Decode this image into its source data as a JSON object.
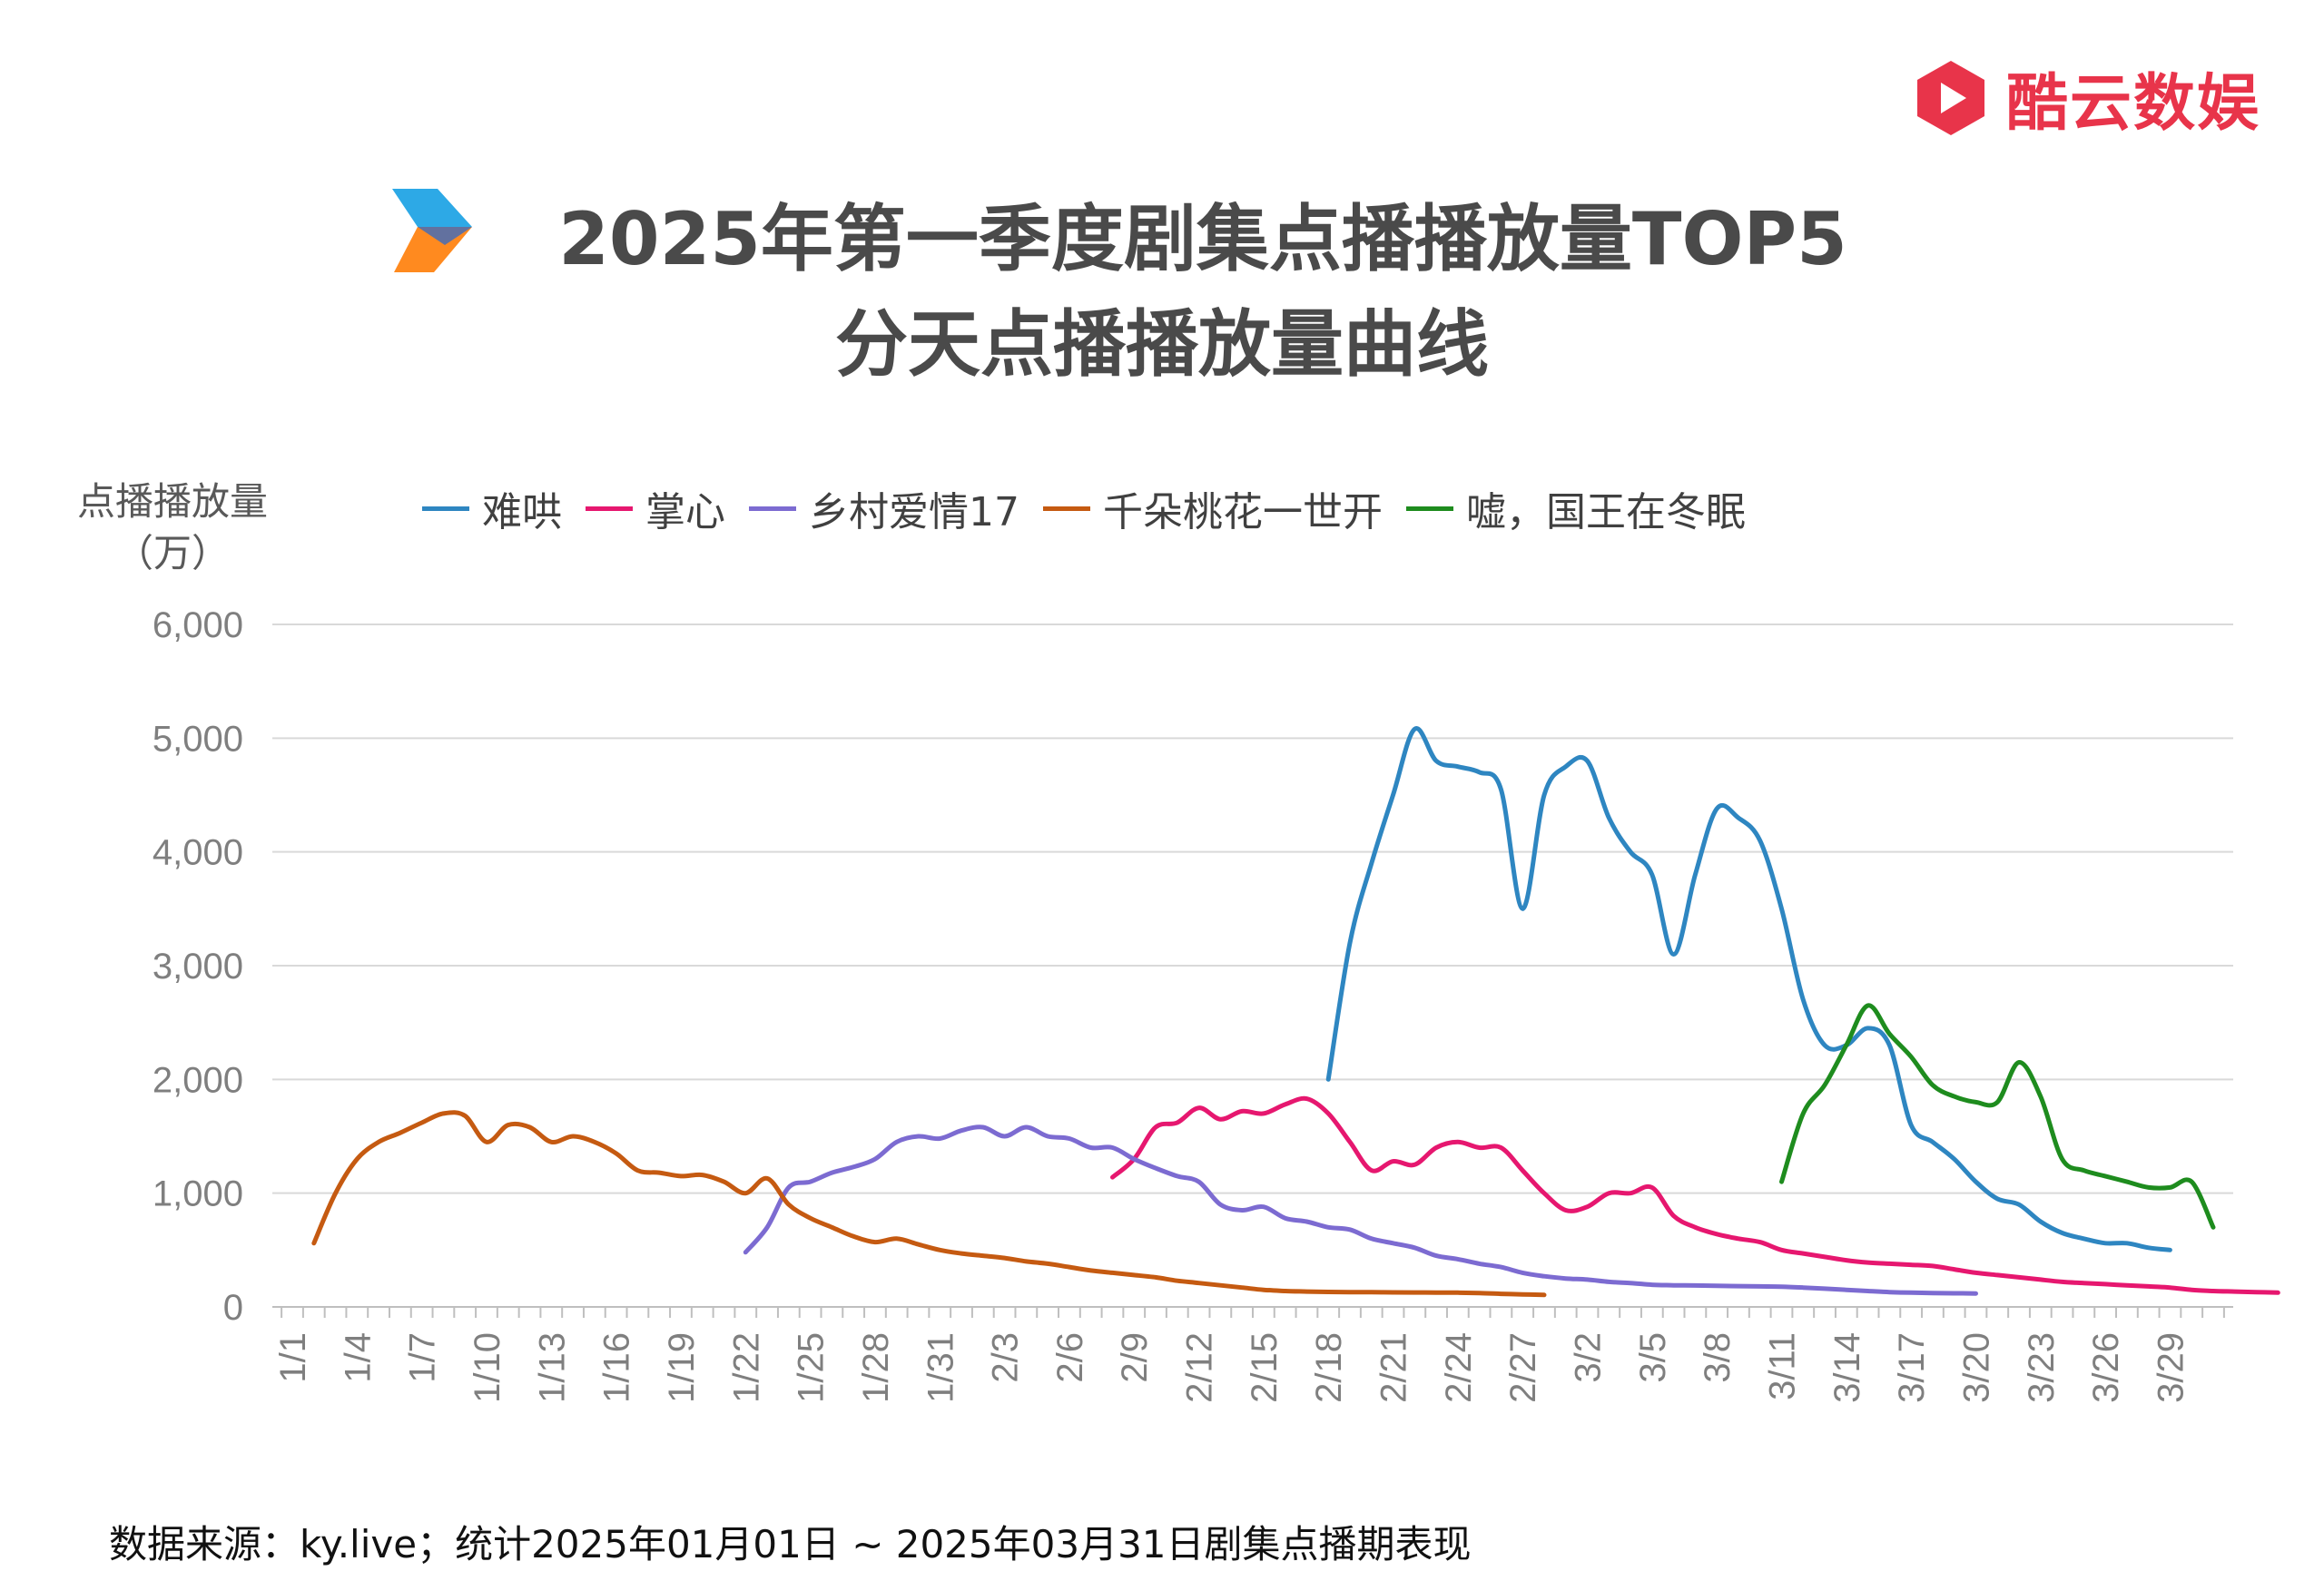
{
  "brand": {
    "name": "酷云数娱",
    "color": "#e8344a"
  },
  "title": {
    "line1": "2025年第一季度剧集点播播放量TOP5",
    "line2": "分天点播播放量曲线"
  },
  "footer": {
    "source": "数据来源：ky.live；统计2025年01月01日 ~ 2025年03月31日剧集点播期表现"
  },
  "chart_data": {
    "type": "line",
    "ylabel": [
      "点播播放量",
      "（万）"
    ],
    "ylim": [
      0,
      6000
    ],
    "yticks": [
      0,
      1000,
      2000,
      3000,
      4000,
      5000,
      6000
    ],
    "ytick_labels": [
      "0",
      "1,000",
      "2,000",
      "3,000",
      "4,000",
      "5,000",
      "6,000"
    ],
    "xticks": [
      "1/1",
      "1/4",
      "1/7",
      "1/10",
      "1/13",
      "1/16",
      "1/19",
      "1/22",
      "1/25",
      "1/28",
      "1/31",
      "2/3",
      "2/6",
      "2/9",
      "2/12",
      "2/15",
      "2/18",
      "2/21",
      "2/24",
      "2/27",
      "3/2",
      "3/5",
      "3/8",
      "3/11",
      "3/14",
      "3/17",
      "3/20",
      "3/23",
      "3/26",
      "3/29"
    ],
    "x_start": "2025-01-01",
    "x_end": "2025-03-31",
    "grid": true,
    "legend_position": "top",
    "series": [
      {
        "name": "难哄",
        "color": "#2e86c1",
        "start": "2025-02-18",
        "values": [
          2000,
          3200,
          3900,
          4500,
          5080,
          4800,
          4750,
          4700,
          4550,
          3500,
          4500,
          4750,
          4800,
          4300,
          4000,
          3800,
          3100,
          3800,
          4380,
          4300,
          4100,
          3500,
          2700,
          2300,
          2300,
          2450,
          2300,
          1600,
          1450,
          1300,
          1100,
          950,
          900,
          750,
          650,
          600,
          560,
          560,
          520,
          500
        ]
      },
      {
        "name": "掌心",
        "color": "#e6176f",
        "start": "2025-02-08",
        "values": [
          1140,
          1300,
          1580,
          1620,
          1750,
          1650,
          1720,
          1700,
          1780,
          1830,
          1700,
          1450,
          1200,
          1280,
          1250,
          1400,
          1450,
          1400,
          1400,
          1200,
          1000,
          850,
          880,
          1000,
          1000,
          1050,
          800,
          700,
          640,
          600,
          570,
          500,
          470,
          440,
          410,
          390,
          380,
          370,
          360,
          330,
          300,
          280,
          260,
          240,
          220,
          210,
          200,
          190,
          180,
          170,
          150,
          140,
          135,
          130,
          125
        ]
      },
      {
        "name": "乡村爱情17",
        "color": "#7c6bd1",
        "start": "2025-01-22",
        "values": [
          480,
          700,
          1050,
          1100,
          1180,
          1230,
          1300,
          1450,
          1500,
          1480,
          1550,
          1580,
          1500,
          1580,
          1500,
          1480,
          1400,
          1400,
          1300,
          1220,
          1150,
          1100,
          900,
          850,
          880,
          780,
          750,
          700,
          680,
          600,
          560,
          520,
          450,
          420,
          380,
          350,
          300,
          270,
          250,
          240,
          220,
          210,
          195,
          190,
          188,
          185,
          183,
          180,
          178,
          170,
          160,
          150,
          140,
          130,
          125,
          122,
          120,
          118
        ]
      },
      {
        "name": "千朵桃花一世开",
        "color": "#c55a11",
        "start": "2025-01-02",
        "values": [
          560,
          1000,
          1300,
          1450,
          1530,
          1620,
          1700,
          1680,
          1450,
          1600,
          1580,
          1450,
          1500,
          1450,
          1350,
          1200,
          1180,
          1150,
          1160,
          1100,
          1000,
          1130,
          900,
          780,
          700,
          620,
          570,
          600,
          550,
          500,
          470,
          450,
          430,
          400,
          380,
          350,
          320,
          300,
          280,
          260,
          230,
          210,
          190,
          170,
          150,
          140,
          135,
          132,
          130,
          129,
          128,
          127,
          126,
          125,
          122,
          115,
          110,
          105
        ]
      },
      {
        "name": "嘘，国王在冬眠",
        "color": "#1e8c1e",
        "start": "2025-03-11",
        "values": [
          1100,
          1700,
          1950,
          2300,
          2650,
          2400,
          2200,
          1950,
          1850,
          1800,
          1800,
          2150,
          1850,
          1300,
          1200,
          1150,
          1100,
          1050,
          1050,
          1100,
          700
        ]
      }
    ]
  }
}
